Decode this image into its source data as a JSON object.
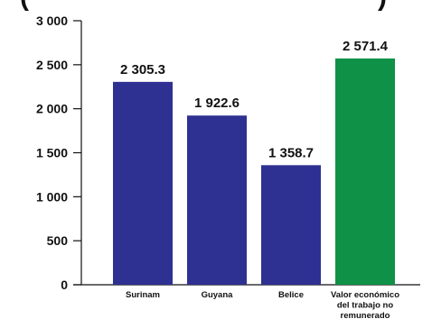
{
  "chart_data": {
    "type": "bar",
    "title_visible_fragments": [
      "(",
      ")"
    ],
    "categories": [
      [
        "Surinam"
      ],
      [
        "Guyana"
      ],
      [
        "Belice"
      ],
      [
        "Valor económico",
        "del trabajo no",
        "remunerado"
      ]
    ],
    "values": [
      2305.3,
      1922.6,
      1358.7,
      2571.4
    ],
    "value_labels": [
      "2 305.3",
      "1 922.6",
      "1 358.7",
      "2 571.4"
    ],
    "bar_colors": [
      "#2e3192",
      "#2e3192",
      "#2e3192",
      "#0f9147"
    ],
    "ylim": [
      0,
      3000
    ],
    "y_ticks": [
      0,
      500,
      1000,
      1500,
      2000,
      2500,
      3000
    ],
    "y_tick_labels": [
      "0",
      "500",
      "1 000",
      "1 500",
      "2 000",
      "2 500",
      "3 000"
    ],
    "grid": false,
    "legend": "none",
    "axis_color": "#111111"
  }
}
